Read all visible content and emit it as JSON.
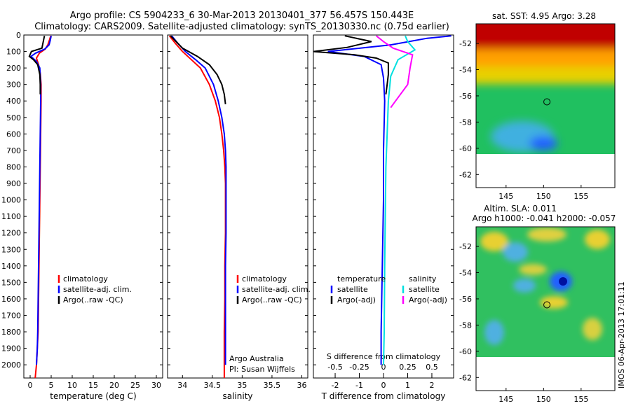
{
  "title_line1": "Argo profile: CS 5904233_6 30-Mar-2013 20130401_377 56.457S 150.443E",
  "title_line2": "Climatology: CARS2009. Satellite-adjusted climatology: synTS_20130330.nc (0.75d earlier)",
  "side_label": "IMOS 06-Apr-2013 17:01:11",
  "colors": {
    "climatology": "#ff0000",
    "satellite": "#0000ff",
    "argo": "#000000",
    "sal_satellite": "#00e0e0",
    "sal_argo": "#ff00ff"
  },
  "chart_data": [
    {
      "type": "line",
      "panel": "temperature",
      "xlabel": "temperature (deg C)",
      "ylabel": "",
      "xlim": [
        -1.5,
        31.5
      ],
      "ylim": [
        2080,
        0
      ],
      "x_ticks": [
        "0",
        "5",
        "10",
        "15",
        "20",
        "25",
        "30"
      ],
      "y_ticks": [
        "0",
        "100",
        "200",
        "300",
        "400",
        "500",
        "600",
        "700",
        "800",
        "900",
        "1000",
        "1100",
        "1200",
        "1300",
        "1400",
        "1500",
        "1600",
        "1700",
        "1800",
        "1900",
        "2000"
      ],
      "legend": [
        "climatology",
        "satellite-adj. clim.",
        "Argo(..raw -QC)"
      ],
      "series": [
        {
          "name": "climatology",
          "x": [
            4.9,
            4.6,
            4.2,
            3.6,
            2.2,
            1.5,
            2.0,
            2.4,
            2.6,
            2.6,
            2.5,
            2.4,
            2.3,
            2.2,
            2.1,
            2.0,
            1.9,
            1.7,
            1.5,
            1.2
          ],
          "y": [
            5,
            30,
            60,
            85,
            110,
            140,
            180,
            230,
            300,
            400,
            600,
            800,
            1000,
            1200,
            1400,
            1600,
            1800,
            1900,
            2000,
            2080
          ]
        },
        {
          "name": "satellite-adj. clim.",
          "x": [
            5.0,
            4.8,
            4.5,
            3.5,
            1.3,
            0.2,
            1.5,
            2.3,
            2.5,
            2.5,
            2.4,
            2.3,
            2.2,
            2.1,
            2.0,
            1.9,
            1.8,
            1.7,
            1.5
          ],
          "y": [
            5,
            30,
            60,
            85,
            110,
            130,
            160,
            200,
            300,
            400,
            600,
            800,
            1000,
            1200,
            1400,
            1600,
            1800,
            1900,
            2000
          ]
        },
        {
          "name": "Argo(..raw -QC)",
          "x": [
            3.4,
            3.2,
            2.8,
            0.3,
            -0.2,
            0.8,
            1.8,
            2.3,
            2.4,
            2.4
          ],
          "y": [
            5,
            30,
            80,
            100,
            130,
            150,
            180,
            240,
            300,
            360
          ]
        }
      ]
    },
    {
      "type": "line",
      "panel": "salinity",
      "xlabel": "salinity",
      "xlim": [
        33.75,
        36.1
      ],
      "ylim": [
        2080,
        0
      ],
      "x_ticks": [
        "34",
        "34.5",
        "35",
        "35.5",
        "36"
      ],
      "legend": [
        "climatology",
        "satellite-adj. clim.",
        "Argo(..raw -QC)"
      ],
      "annotation": [
        "Argo Australia",
        "PI: Susan Wijffels"
      ],
      "series": [
        {
          "name": "climatology",
          "x": [
            33.78,
            33.88,
            34.0,
            34.15,
            34.3,
            34.45,
            34.55,
            34.62,
            34.66,
            34.69,
            34.71,
            34.72,
            34.72,
            34.72,
            34.71,
            34.71,
            34.7,
            34.7,
            34.7
          ],
          "y": [
            5,
            50,
            100,
            150,
            200,
            300,
            400,
            500,
            600,
            700,
            800,
            900,
            1000,
            1200,
            1400,
            1600,
            1800,
            2000,
            2080
          ]
        },
        {
          "name": "satellite-adj. clim.",
          "x": [
            33.82,
            33.92,
            34.05,
            34.22,
            34.38,
            34.52,
            34.6,
            34.66,
            34.7,
            34.72,
            34.73,
            34.73,
            34.73,
            34.73,
            34.72,
            34.72,
            34.72,
            34.72
          ],
          "y": [
            5,
            50,
            100,
            150,
            200,
            300,
            400,
            500,
            600,
            700,
            800,
            900,
            1000,
            1200,
            1400,
            1600,
            1800,
            2000
          ]
        },
        {
          "name": "Argo(..raw -QC)",
          "x": [
            33.8,
            34.0,
            34.25,
            34.45,
            34.58,
            34.66,
            34.7,
            34.72
          ],
          "y": [
            5,
            80,
            130,
            180,
            240,
            300,
            360,
            420
          ]
        }
      ]
    },
    {
      "type": "line",
      "panel": "difference",
      "xlabel": "T difference from climatology",
      "xlabel_top": "S difference from climatology",
      "xlim": [
        -2.9,
        2.9
      ],
      "ylim": [
        2080,
        0
      ],
      "x_ticks": [
        "-2",
        "-1",
        "0",
        "1",
        "2"
      ],
      "x_ticks_top": [
        "-0.5",
        "-0.25",
        "0",
        "0.25",
        "0.5"
      ],
      "legend_headers": [
        "temperature",
        "salinity"
      ],
      "legend": [
        "satellite",
        "Argo(-adj)",
        "satellite",
        "Argo(-adj)"
      ],
      "series": [
        {
          "name": "satellite",
          "x": [
            2.8,
            1.8,
            0.3,
            -2.3,
            -0.8,
            -0.1,
            0.0,
            0.05,
            0.0,
            0.0,
            -0.05,
            -0.1,
            -0.1
          ],
          "y": [
            5,
            20,
            60,
            100,
            130,
            180,
            260,
            400,
            700,
            1000,
            1400,
            1800,
            2000
          ]
        },
        {
          "name": "Argo(-adj)",
          "x": [
            -1.6,
            -0.5,
            -1.5,
            -2.9,
            -1.2,
            -0.3,
            0.2,
            0.2,
            0.15,
            0.1
          ],
          "y": [
            5,
            40,
            75,
            100,
            120,
            140,
            170,
            240,
            300,
            360
          ]
        },
        {
          "name": "satellite",
          "x": [
            0.9,
            1.0,
            1.3,
            0.6,
            0.3,
            0.2,
            0.15,
            0.1,
            0.08,
            0.05,
            0.03,
            0.0
          ],
          "y": [
            5,
            40,
            90,
            150,
            250,
            400,
            600,
            800,
            1000,
            1400,
            1800,
            2000
          ]
        },
        {
          "name": "Argo(-adj)",
          "x": [
            -0.3,
            0.0,
            0.4,
            1.2,
            1.1,
            1.0,
            0.5,
            0.3
          ],
          "y": [
            5,
            40,
            80,
            120,
            200,
            300,
            400,
            440
          ]
        }
      ]
    },
    {
      "type": "heatmap",
      "panel": "sst_map",
      "title": "sat. SST: 4.95  Argo: 3.28",
      "xlim": [
        141,
        159.5
      ],
      "ylim": [
        -63,
        -50.5
      ],
      "x_ticks": [
        "145",
        "150",
        "155"
      ],
      "y_ticks": [
        "-52",
        "-54",
        "-56",
        "-58",
        "-60",
        "-62"
      ],
      "data_ylim_bottom": -60,
      "argo_position": [
        150.443,
        -56.457
      ]
    },
    {
      "type": "heatmap",
      "panel": "sla_map",
      "title": [
        "Altim. SLA: 0.011",
        "Argo h1000: -0.041  h2000: -0.057"
      ],
      "xlim": [
        141,
        159.5
      ],
      "ylim": [
        -63,
        -50.5
      ],
      "x_ticks": [
        "145",
        "150",
        "155"
      ],
      "y_ticks": [
        "-52",
        "-54",
        "-56",
        "-58",
        "-60",
        "-62"
      ],
      "data_ylim_bottom": -60,
      "argo_position": [
        150.443,
        -56.457
      ]
    }
  ]
}
